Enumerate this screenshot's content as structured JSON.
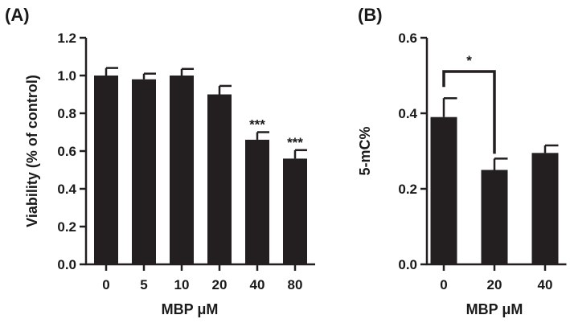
{
  "colors": {
    "bar": "#231f20",
    "axis": "#231f20",
    "background": "#ffffff"
  },
  "chart_data": [
    {
      "panel": "(A)",
      "type": "bar",
      "xlabel": "MBP μM",
      "ylabel": "Viability (% of control)",
      "ylim": [
        0,
        1.2
      ],
      "yticks": [
        0.0,
        0.2,
        0.4,
        0.6,
        0.8,
        1.0,
        1.2
      ],
      "ytick_labels": [
        "0.0",
        "0.2",
        "0.4",
        "0.6",
        "0.8",
        "1.0",
        "1.2"
      ],
      "categories": [
        "0",
        "5",
        "10",
        "20",
        "40",
        "80"
      ],
      "values": [
        1.0,
        0.98,
        1.0,
        0.9,
        0.66,
        0.56
      ],
      "errors": [
        0.04,
        0.03,
        0.035,
        0.045,
        0.04,
        0.045
      ],
      "significance": [
        "",
        "",
        "",
        "",
        "***",
        "***"
      ],
      "grid": false,
      "legend": "none"
    },
    {
      "panel": "(B)",
      "type": "bar",
      "xlabel": "MBP μM",
      "ylabel": "5-mC%",
      "ylim": [
        0,
        0.6
      ],
      "yticks": [
        0.0,
        0.2,
        0.4,
        0.6
      ],
      "ytick_labels": [
        "0.0",
        "0.2",
        "0.4",
        "0.6"
      ],
      "categories": [
        "0",
        "20",
        "40"
      ],
      "values": [
        0.39,
        0.25,
        0.295
      ],
      "errors": [
        0.05,
        0.03,
        0.02
      ],
      "comparisons": [
        {
          "from": "0",
          "to": "20",
          "label": "*"
        }
      ],
      "grid": false,
      "legend": "none"
    }
  ]
}
